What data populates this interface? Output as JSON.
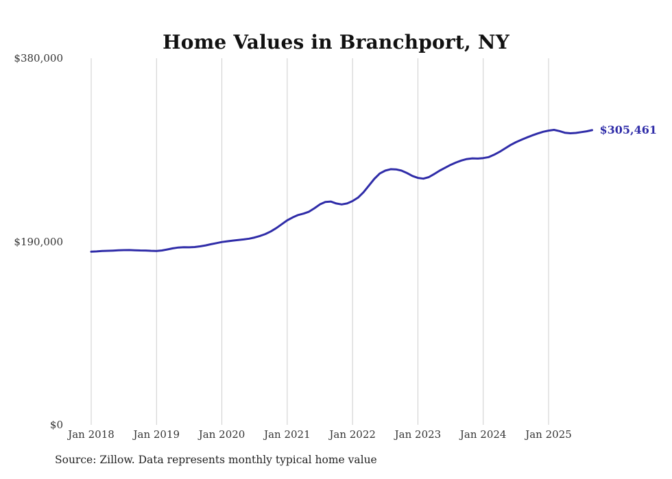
{
  "chart_data": {
    "type": "line",
    "title": "Home Values in Branchport, NY",
    "source": "Source: Zillow. Data represents monthly typical home value",
    "end_label": "$305,461",
    "latest_value": 305461,
    "xlabel": "",
    "ylabel": "",
    "x_start": "2018-01",
    "x_end": "2025-09",
    "frequency": "monthly",
    "ylim": [
      0,
      380000
    ],
    "grid": "vertical-only",
    "legend": "none",
    "yticks": [
      {
        "label": "$0",
        "value": 0
      },
      {
        "label": "$190,000",
        "value": 190000
      },
      {
        "label": "$380,000",
        "value": 380000
      }
    ],
    "xticks": [
      {
        "label": "Jan 2018",
        "index": 0
      },
      {
        "label": "Jan 2019",
        "index": 12
      },
      {
        "label": "Jan 2020",
        "index": 24
      },
      {
        "label": "Jan 2021",
        "index": 36
      },
      {
        "label": "Jan 2022",
        "index": 48
      },
      {
        "label": "Jan 2023",
        "index": 60
      },
      {
        "label": "Jan 2024",
        "index": 72
      },
      {
        "label": "Jan 2025",
        "index": 84
      }
    ],
    "values": [
      179500,
      179800,
      180200,
      180400,
      180600,
      180900,
      181100,
      181200,
      181000,
      180800,
      180700,
      180400,
      180300,
      180800,
      181800,
      183000,
      183800,
      184200,
      184000,
      184300,
      185000,
      186000,
      187200,
      188400,
      189500,
      190300,
      191000,
      191600,
      192200,
      193000,
      194200,
      195800,
      197800,
      200500,
      204000,
      208000,
      212000,
      215000,
      217500,
      219000,
      221000,
      224500,
      228500,
      231000,
      231500,
      229500,
      228500,
      229500,
      232000,
      235500,
      241000,
      248000,
      255000,
      260500,
      263500,
      265000,
      264800,
      263500,
      261000,
      258000,
      256000,
      255200,
      256800,
      260000,
      263500,
      266500,
      269500,
      272000,
      274000,
      275500,
      276200,
      276000,
      276500,
      277500,
      280000,
      283000,
      286500,
      290000,
      293000,
      295500,
      297800,
      300000,
      302000,
      303800,
      305000,
      305800,
      304500,
      302800,
      302200,
      302600,
      303400,
      304300,
      305461
    ],
    "colors": {
      "line": "#2f2ca8",
      "grid": "#cccccc",
      "tick_text": "#333333",
      "title_text": "#111111"
    }
  }
}
